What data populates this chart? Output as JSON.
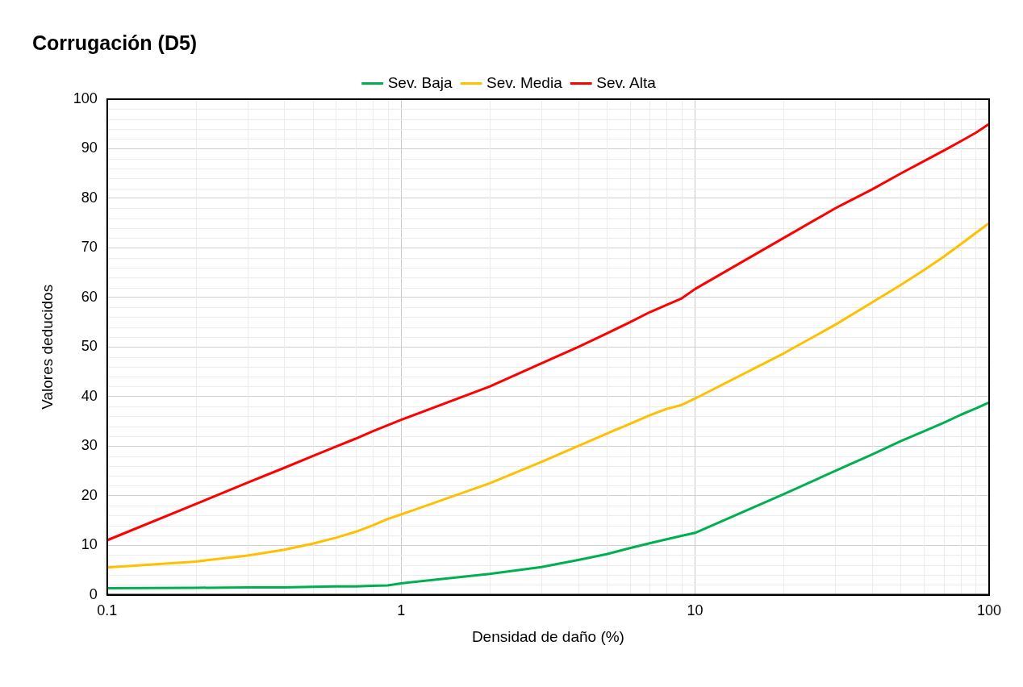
{
  "chart_data": {
    "type": "line",
    "title": "Corrugación (D5)",
    "xlabel": "Densidad de daño (%)",
    "ylabel": "Valores deducidos",
    "x": [
      0.1,
      0.2,
      0.3,
      0.4,
      0.5,
      0.6,
      0.7,
      0.8,
      0.9,
      1,
      2,
      3,
      4,
      5,
      6,
      7,
      8,
      9,
      10,
      20,
      30,
      40,
      50,
      60,
      70,
      80,
      90,
      100
    ],
    "series": [
      {
        "name": "Sev. Baja",
        "color": "#00b050",
        "values": [
          1.3,
          1.4,
          1.5,
          1.5,
          1.6,
          1.7,
          1.7,
          1.8,
          1.9,
          2.3,
          4.2,
          5.6,
          7,
          8.2,
          9.4,
          10.4,
          11.2,
          11.9,
          12.5,
          20.3,
          25,
          28.3,
          31,
          33,
          34.7,
          36.3,
          37.6,
          38.8
        ]
      },
      {
        "name": "Sev. Media",
        "color": "#ffc000",
        "values": [
          5.5,
          6.7,
          7.9,
          9.1,
          10.3,
          11.5,
          12.7,
          14,
          15.3,
          16.2,
          22.5,
          26.8,
          30,
          32.5,
          34.5,
          36.2,
          37.5,
          38.3,
          39.6,
          48.7,
          54.5,
          59,
          62.5,
          65.5,
          68.2,
          70.7,
          73,
          75
        ]
      },
      {
        "name": "Sev. Alta",
        "color": "#ff0000",
        "values": [
          11,
          18.3,
          22.6,
          25.6,
          28,
          29.9,
          31.5,
          33,
          34.2,
          35.3,
          42,
          46.7,
          50,
          52.7,
          55,
          57,
          58.5,
          59.8,
          61.7,
          72,
          78,
          81.8,
          85,
          87.5,
          89.6,
          91.5,
          93.2,
          95
        ]
      }
    ],
    "log": "x",
    "xlim": [
      0.1,
      100
    ],
    "xticks": [
      0.1,
      1,
      10,
      100
    ],
    "ylim": [
      0,
      100
    ],
    "yticks": [
      0,
      10,
      20,
      30,
      40,
      50,
      60,
      70,
      80,
      90,
      100
    ],
    "grid": true,
    "legend": "top",
    "marker": "none",
    "line_style": "solid"
  }
}
